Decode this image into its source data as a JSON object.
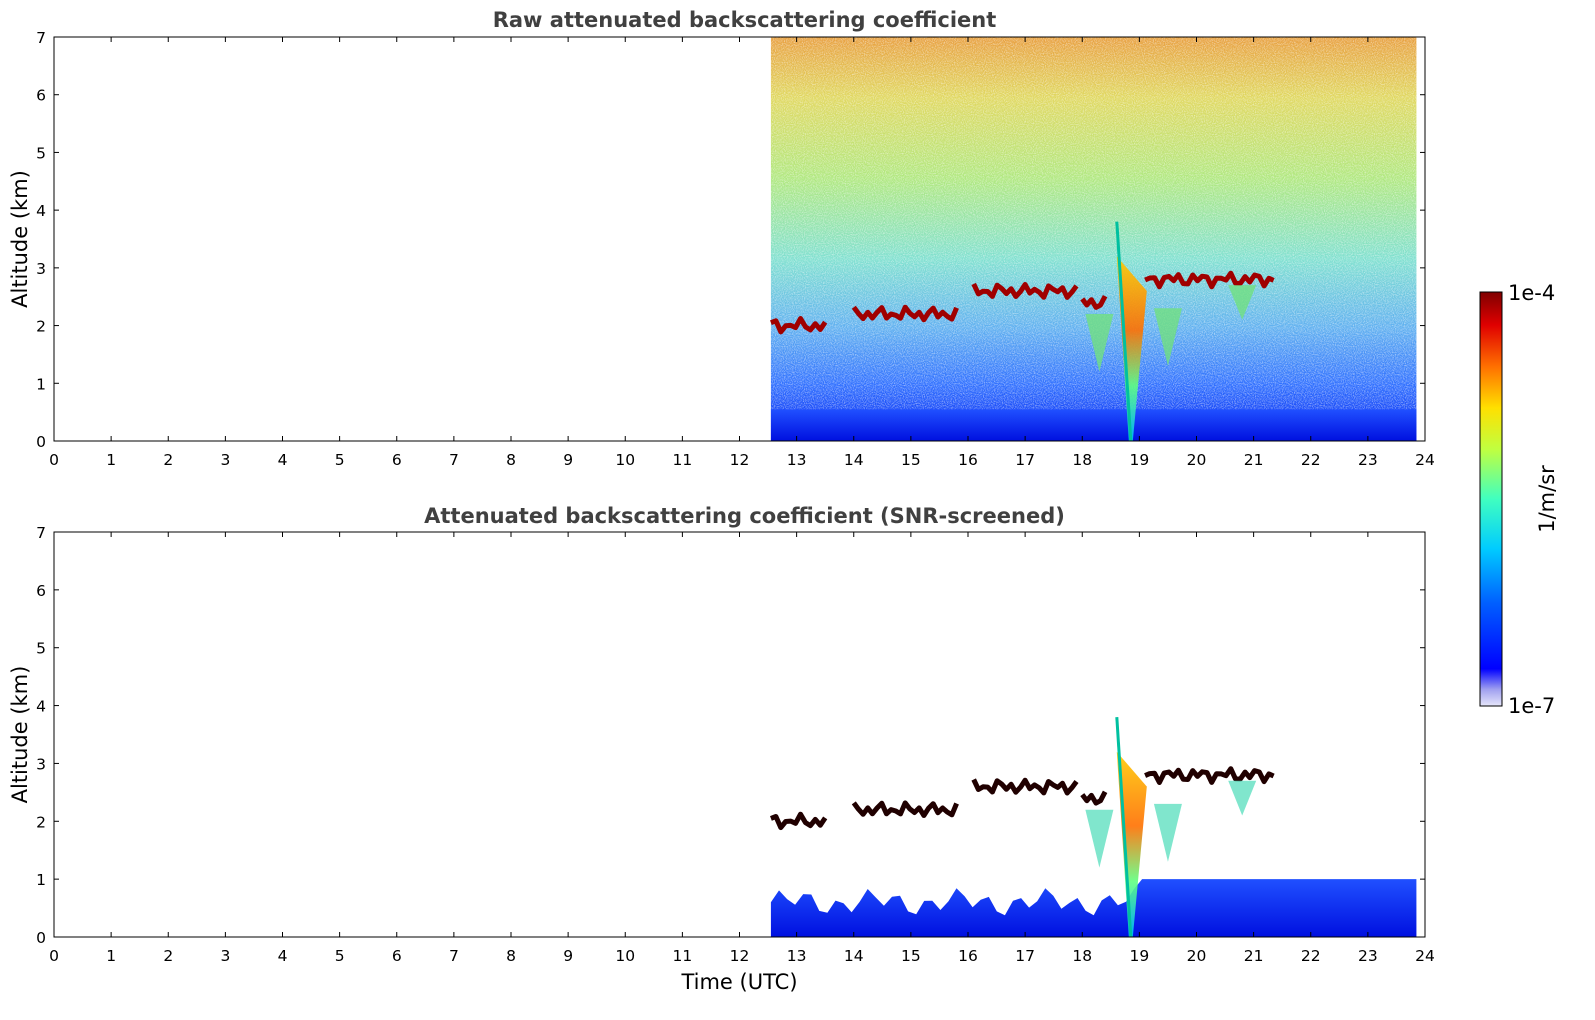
{
  "chart_data": [
    {
      "type": "heatmap",
      "title": "Raw attenuated backscattering coefficient",
      "xlabel": "",
      "ylabel": "Altitude (km)",
      "xlim": [
        0,
        24
      ],
      "ylim": [
        0,
        7
      ],
      "xticks": [
        "0",
        "1",
        "2",
        "3",
        "4",
        "5",
        "6",
        "7",
        "8",
        "9",
        "10",
        "11",
        "12",
        "13",
        "14",
        "15",
        "16",
        "17",
        "18",
        "19",
        "20",
        "21",
        "22",
        "23",
        "24"
      ],
      "yticks": [
        "0",
        "1",
        "2",
        "3",
        "4",
        "5",
        "6",
        "7"
      ],
      "data_time_range": [
        12.55,
        23.85
      ],
      "layers": [
        {
          "feature": "cloud base",
          "t_start": 12.55,
          "t_end": 13.5,
          "altitude": 2.0
        },
        {
          "feature": "cloud base",
          "t_start": 14.0,
          "t_end": 15.8,
          "altitude": 2.2
        },
        {
          "feature": "cloud base",
          "t_start": 16.1,
          "t_end": 17.9,
          "altitude": 2.6
        },
        {
          "feature": "cloud base",
          "t_start": 18.0,
          "t_end": 18.4,
          "altitude": 2.4
        },
        {
          "feature": "cloud base",
          "t_start": 19.1,
          "t_end": 21.35,
          "altitude": 2.8
        },
        {
          "feature": "precipitation shaft",
          "time": 18.85,
          "altitude_top": 3.8,
          "altitude_bottom": 0.0
        }
      ]
    },
    {
      "type": "heatmap",
      "title": "Attenuated backscattering coefficient (SNR-screened)",
      "xlabel": "Time (UTC)",
      "ylabel": "Altitude (km)",
      "xlim": [
        0,
        24
      ],
      "ylim": [
        0,
        7
      ],
      "xticks": [
        "0",
        "1",
        "2",
        "3",
        "4",
        "5",
        "6",
        "7",
        "8",
        "9",
        "10",
        "11",
        "12",
        "13",
        "14",
        "15",
        "16",
        "17",
        "18",
        "19",
        "20",
        "21",
        "22",
        "23",
        "24"
      ],
      "yticks": [
        "0",
        "1",
        "2",
        "3",
        "4",
        "5",
        "6",
        "7"
      ],
      "data_time_range": [
        12.55,
        23.85
      ],
      "boundary_layer_top_km": 0.6
    }
  ],
  "colorbar": {
    "label": "1/m/sr",
    "max_label": "1e-4",
    "min_label": "1e-7",
    "colormap": [
      "#000080",
      "#0000ff",
      "#0080ff",
      "#00ffff",
      "#80ff80",
      "#ffff00",
      "#ff8000",
      "#ff0000",
      "#800000"
    ],
    "low_colors": [
      "#e6e6fa",
      "#c8c8f5",
      "#a0a0f0",
      "#7070ee"
    ]
  }
}
